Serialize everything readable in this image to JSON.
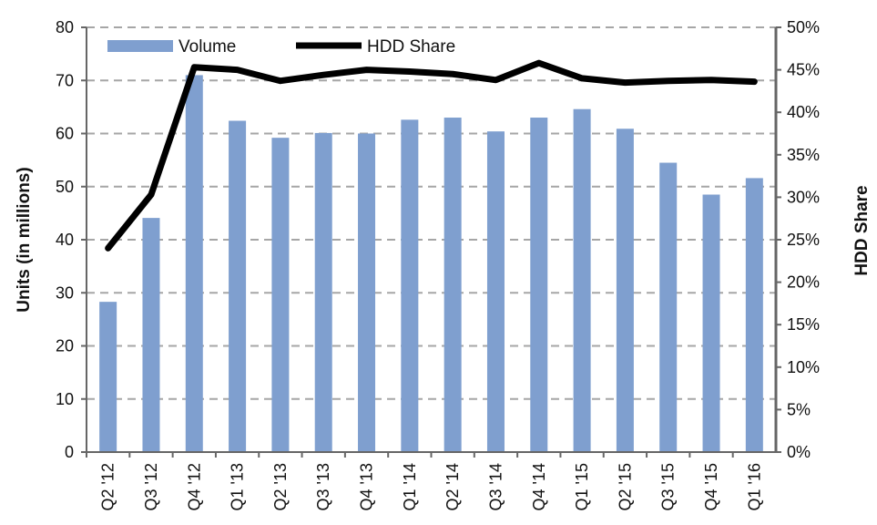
{
  "chart_data": {
    "type": "bar",
    "categories": [
      "Q2 '12",
      "Q3 '12",
      "Q4 '12",
      "Q1 '13",
      "Q2 '13",
      "Q3 '13",
      "Q4 '13",
      "Q1 '14",
      "Q2 '14",
      "Q3 '14",
      "Q4 '14",
      "Q1 '15",
      "Q2 '15",
      "Q3 '15",
      "Q4 '15",
      "Q1 '16"
    ],
    "series": [
      {
        "name": "Volume",
        "type": "bar",
        "axis": "left",
        "color": "#7f9fcf",
        "values": [
          28.3,
          44.1,
          71.0,
          62.4,
          59.2,
          60.1,
          60.0,
          62.6,
          63.0,
          60.4,
          63.0,
          64.6,
          60.9,
          54.5,
          48.5,
          51.6
        ]
      },
      {
        "name": "HDD Share",
        "type": "line",
        "axis": "right",
        "color": "#000000",
        "values": [
          24.0,
          30.3,
          45.3,
          45.0,
          43.7,
          44.4,
          45.0,
          44.8,
          44.5,
          43.8,
          45.8,
          44.0,
          43.5,
          43.7,
          43.8,
          43.6
        ]
      }
    ],
    "y_left": {
      "label": "Units (in millions)",
      "ylim": [
        0,
        80
      ],
      "ticks": [
        0,
        10,
        20,
        30,
        40,
        50,
        60,
        70,
        80
      ],
      "tick_labels": [
        "0",
        "10",
        "20",
        "30",
        "40",
        "50",
        "60",
        "70",
        "80"
      ]
    },
    "y_right": {
      "label": "HDD Share",
      "ylim": [
        0,
        50
      ],
      "ticks": [
        0,
        5,
        10,
        15,
        20,
        25,
        30,
        35,
        40,
        45,
        50
      ],
      "tick_labels": [
        "0%",
        "5%",
        "10%",
        "15%",
        "20%",
        "25%",
        "30%",
        "35%",
        "40%",
        "45%",
        "50%"
      ]
    },
    "xlabel": "",
    "title": "",
    "grid": "horizontal dashed",
    "legend_position": "top-left"
  }
}
